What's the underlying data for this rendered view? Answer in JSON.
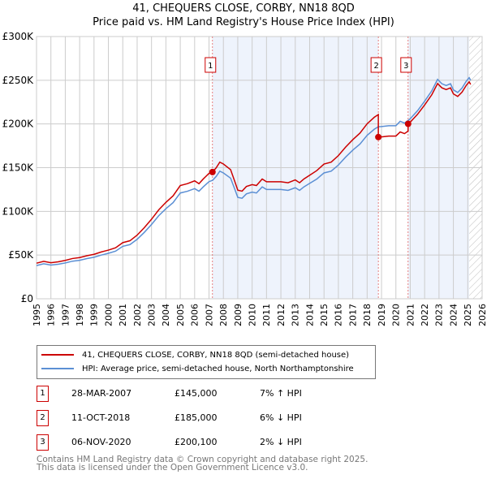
{
  "chart_data": {
    "type": "line",
    "title": "41, CHEQUERS CLOSE, CORBY, NN18 8QD",
    "subtitle": "Price paid vs. HM Land Registry's House Price Index (HPI)",
    "xlim": [
      1995,
      2026
    ],
    "ylim": [
      0,
      300000
    ],
    "y_ticks": [
      {
        "v": 0,
        "label": "£0"
      },
      {
        "v": 50000,
        "label": "£50K"
      },
      {
        "v": 100000,
        "label": "£100K"
      },
      {
        "v": 150000,
        "label": "£150K"
      },
      {
        "v": 200000,
        "label": "£200K"
      },
      {
        "v": 250000,
        "label": "£250K"
      },
      {
        "v": 300000,
        "label": "£300K"
      }
    ],
    "x_ticks": [
      "1995",
      "1996",
      "1997",
      "1998",
      "1999",
      "2000",
      "2001",
      "2002",
      "2003",
      "2004",
      "2005",
      "2006",
      "2007",
      "2008",
      "2009",
      "2010",
      "2011",
      "2012",
      "2013",
      "2014",
      "2015",
      "2016",
      "2017",
      "2018",
      "2019",
      "2020",
      "2021",
      "2022",
      "2023",
      "2024",
      "2025",
      "2026"
    ],
    "grid": true,
    "hpi_series": {
      "name": "HPI: Average price, semi-detached house, North Northamptonshire",
      "color": "#5b8fd4",
      "points": [
        [
          1995,
          38000
        ],
        [
          1995.5,
          40000
        ],
        [
          1996,
          38500
        ],
        [
          1996.5,
          39500
        ],
        [
          1997,
          41000
        ],
        [
          1997.5,
          43000
        ],
        [
          1998,
          44000
        ],
        [
          1998.5,
          46000
        ],
        [
          1999,
          47500
        ],
        [
          1999.5,
          50000
        ],
        [
          2000,
          52000
        ],
        [
          2000.5,
          54500
        ],
        [
          2001,
          60000
        ],
        [
          2001.5,
          62000
        ],
        [
          2002,
          68000
        ],
        [
          2002.5,
          76000
        ],
        [
          2003,
          85000
        ],
        [
          2003.5,
          95000
        ],
        [
          2004,
          103000
        ],
        [
          2004.5,
          110000
        ],
        [
          2005,
          121000
        ],
        [
          2005.5,
          123000
        ],
        [
          2006,
          126000
        ],
        [
          2006.3,
          123000
        ],
        [
          2006.6,
          128000
        ],
        [
          2007,
          134000
        ],
        [
          2007.25,
          135500
        ],
        [
          2007.5,
          140000
        ],
        [
          2007.75,
          146000
        ],
        [
          2008,
          144000
        ],
        [
          2008.5,
          138000
        ],
        [
          2008.8,
          125000
        ],
        [
          2009,
          116000
        ],
        [
          2009.3,
          115000
        ],
        [
          2009.6,
          120000
        ],
        [
          2010,
          122000
        ],
        [
          2010.3,
          121000
        ],
        [
          2010.7,
          128000
        ],
        [
          2011,
          125000
        ],
        [
          2011.5,
          125000
        ],
        [
          2012,
          125000
        ],
        [
          2012.5,
          124000
        ],
        [
          2013,
          127000
        ],
        [
          2013.3,
          124000
        ],
        [
          2013.6,
          128000
        ],
        [
          2014,
          132000
        ],
        [
          2014.5,
          137000
        ],
        [
          2015,
          144000
        ],
        [
          2015.5,
          146000
        ],
        [
          2016,
          153000
        ],
        [
          2016.5,
          162000
        ],
        [
          2017,
          170000
        ],
        [
          2017.5,
          177000
        ],
        [
          2018,
          187000
        ],
        [
          2018.5,
          194000
        ],
        [
          2018.78,
          196800
        ],
        [
          2019,
          197000
        ],
        [
          2019.5,
          198000
        ],
        [
          2020,
          198000
        ],
        [
          2020.3,
          203000
        ],
        [
          2020.6,
          201000
        ],
        [
          2020.85,
          204000
        ],
        [
          2021,
          206000
        ],
        [
          2021.5,
          215000
        ],
        [
          2022,
          226000
        ],
        [
          2022.5,
          238000
        ],
        [
          2022.9,
          251000
        ],
        [
          2023.2,
          246000
        ],
        [
          2023.5,
          244000
        ],
        [
          2023.8,
          246000
        ],
        [
          2024,
          239000
        ],
        [
          2024.3,
          236000
        ],
        [
          2024.6,
          241000
        ],
        [
          2024.9,
          249000
        ],
        [
          2025.1,
          253000
        ],
        [
          2025.2,
          250000
        ]
      ]
    },
    "price_series": {
      "name": "41, CHEQUERS CLOSE, CORBY, NN18 8QD (semi-detached house)",
      "color": "#cc0000"
    },
    "sales": [
      {
        "id": "1",
        "x": 2007.24,
        "date": "28-MAR-2007",
        "price": 145000,
        "price_label": "£145,000",
        "hpi_label": "7% ↑ HPI"
      },
      {
        "id": "2",
        "x": 2018.78,
        "date": "11-OCT-2018",
        "price": 185000,
        "price_label": "£185,000",
        "hpi_label": "6% ↓ HPI"
      },
      {
        "id": "3",
        "x": 2020.85,
        "date": "06-NOV-2020",
        "price": 200100,
        "price_label": "£200,100",
        "hpi_label": "2% ↓ HPI"
      }
    ],
    "shaded_ranges": [
      [
        2007.24,
        2018.78
      ],
      [
        2020.85,
        2025.1
      ]
    ],
    "hatched_from": 2025.1
  },
  "legend": {
    "price": "41, CHEQUERS CLOSE, CORBY, NN18 8QD (semi-detached house)",
    "hpi": "HPI: Average price, semi-detached house, North Northamptonshire"
  },
  "footer": {
    "line1": "Contains HM Land Registry data © Crown copyright and database right 2025.",
    "line2": "This data is licensed under the Open Government Licence v3.0."
  }
}
